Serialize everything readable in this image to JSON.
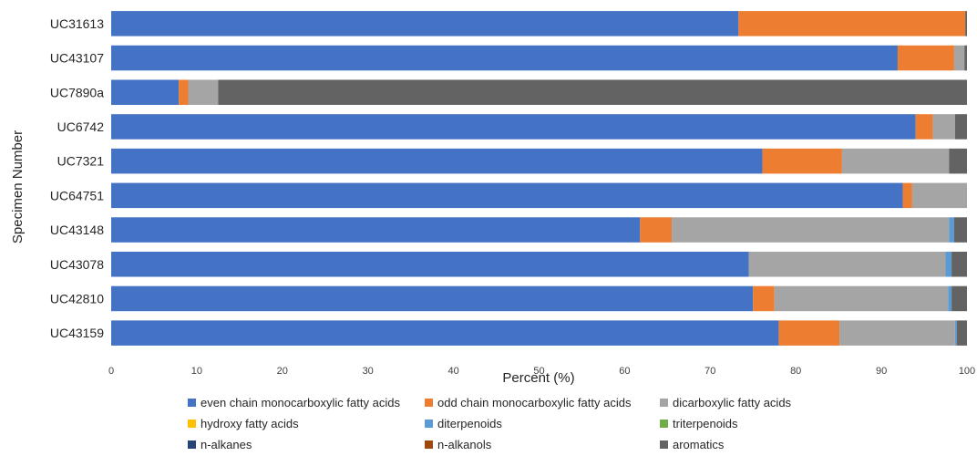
{
  "chart_data": {
    "type": "bar",
    "orientation": "horizontal",
    "stacked": true,
    "title": "",
    "xlabel": "Percent (%)",
    "ylabel": "Specimen Number",
    "xlim": [
      0,
      100
    ],
    "xticks": [
      "0",
      "10",
      "20",
      "30",
      "40",
      "50",
      "60",
      "70",
      "80",
      "90",
      "100"
    ],
    "grid": false,
    "legend_position": "bottom",
    "categories": [
      "UC31613",
      "UC43107",
      "UC7890a",
      "UC6742",
      "UC7321",
      "UC64751",
      "UC43148",
      "UC43078",
      "UC42810",
      "UC43159"
    ],
    "series": [
      {
        "name": "even chain monocarboxylic fatty acids",
        "color": "#4472C4",
        "values": [
          73.3,
          91.9,
          7.9,
          94.0,
          76.1,
          92.5,
          61.8,
          74.5,
          75.0,
          78.0
        ]
      },
      {
        "name": "odd chain monocarboxylic fatty acids",
        "color": "#ED7D31",
        "values": [
          26.5,
          6.6,
          1.1,
          2.0,
          9.3,
          1.1,
          3.7,
          0.0,
          2.5,
          7.1
        ]
      },
      {
        "name": "dicarboxylic fatty acids",
        "color": "#A5A5A5",
        "values": [
          0.0,
          1.2,
          3.5,
          2.6,
          12.5,
          6.4,
          32.4,
          23.0,
          20.3,
          13.5
        ]
      },
      {
        "name": "hydroxy fatty acids",
        "color": "#FFC000",
        "values": [
          0,
          0,
          0,
          0,
          0,
          0,
          0,
          0,
          0,
          0
        ]
      },
      {
        "name": "diterpenoids",
        "color": "#5B9BD5",
        "values": [
          0.0,
          0.0,
          0.0,
          0.0,
          0.0,
          0.0,
          0.6,
          0.7,
          0.4,
          0.2
        ]
      },
      {
        "name": "triterpenoids",
        "color": "#70AD47",
        "values": [
          0,
          0,
          0,
          0,
          0,
          0,
          0,
          0,
          0,
          0
        ]
      },
      {
        "name": "n-alkanes",
        "color": "#264478",
        "values": [
          0,
          0,
          0,
          0,
          0,
          0,
          0,
          0,
          0,
          0
        ]
      },
      {
        "name": "n-alkanols",
        "color": "#9E480E",
        "values": [
          0,
          0,
          0,
          0,
          0,
          0,
          0,
          0,
          0,
          0
        ]
      },
      {
        "name": "aromatics",
        "color": "#636363",
        "values": [
          0.2,
          0.3,
          87.5,
          1.4,
          2.1,
          0.0,
          1.5,
          1.8,
          1.8,
          1.2
        ]
      }
    ]
  }
}
